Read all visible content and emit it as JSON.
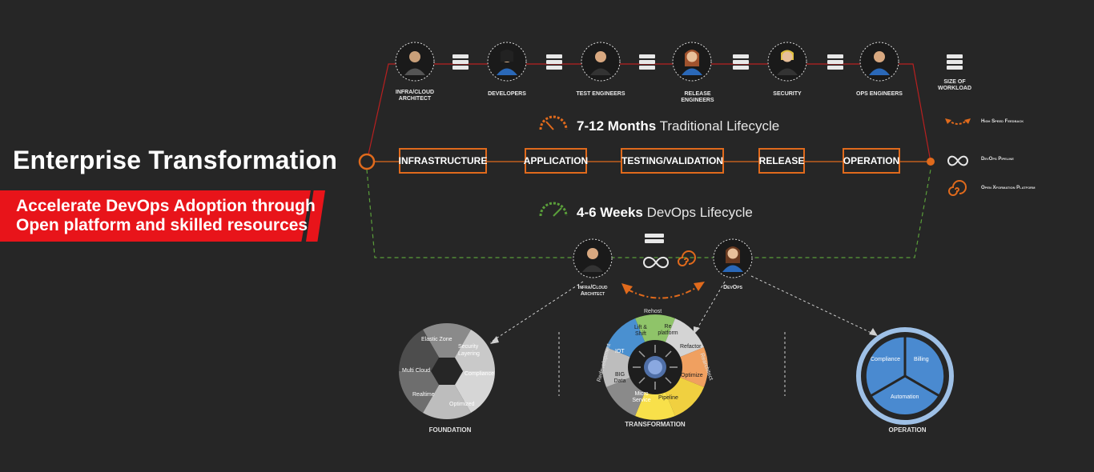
{
  "hero": {
    "title": "Enterprise Transformation",
    "subtitle_line1": "Accelerate DevOps Adoption through",
    "subtitle_line2": "Open platform and skilled resources"
  },
  "roles": [
    {
      "label": "INFRA/CLOUD ARCHITECT"
    },
    {
      "label": "DEVELOPERS"
    },
    {
      "label": "TEST ENGINEERS"
    },
    {
      "label": "RELEASE ENGINEERS"
    },
    {
      "label": "SECURITY"
    },
    {
      "label": "OPS ENGINEERS"
    }
  ],
  "traditional": {
    "bold": "7-12 Months",
    "rest": "Traditional Lifecycle"
  },
  "devops": {
    "bold": "4-6 Weeks",
    "rest": "DevOps Lifecycle"
  },
  "stages": [
    "INFRASTRUCTURE",
    "APPLICATION",
    "TESTING/VALIDATION",
    "RELEASE",
    "OPERATION"
  ],
  "legend": {
    "workload": "SIZE OF WORKLOAD",
    "feedback": "High Speed Feedback",
    "pipeline": "DevOps Pipeline",
    "platform": "Open Xformation Platform"
  },
  "devops_roles": {
    "architect": "Infra/Cloud Architect",
    "devops": "DevOps"
  },
  "foundation": {
    "label": "FOUNDATION",
    "segments": [
      "Elastic Zone",
      "Security Layering",
      "Compliance",
      "Optimized",
      "Realtime",
      "Multi Cloud"
    ]
  },
  "transformation": {
    "label": "TRANSFORMATION",
    "segments": [
      "Lift & Shift",
      "Re platform",
      "Refactor",
      "Optimize",
      "Pipeline",
      "Micro Service",
      "BIG Data",
      "IOT"
    ],
    "outer": [
      "Rehost",
      "Rearchitect",
      "Redevelopment"
    ]
  },
  "operation": {
    "label": "OPERATION",
    "segments": [
      "Compliance",
      "Billing",
      "Automation"
    ]
  },
  "colors": {
    "accent_orange": "#e06a1c",
    "accent_red": "#e8141a",
    "devops_green": "#5a9e3a"
  }
}
